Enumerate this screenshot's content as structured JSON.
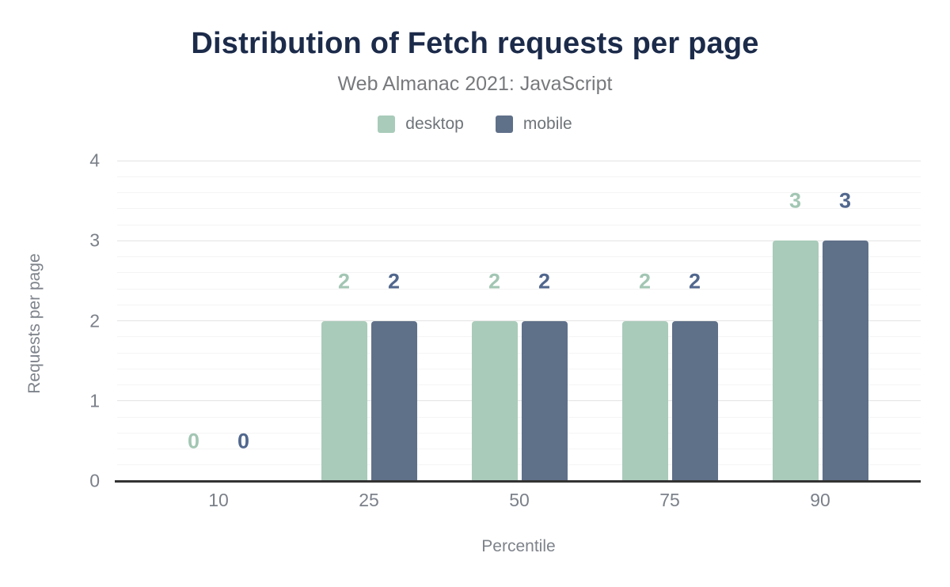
{
  "title": "Distribution of Fetch requests per page",
  "subtitle": "Web Almanac 2021: JavaScript",
  "colors": {
    "title": "#1c2b4a",
    "subtitle": "#77797c",
    "tick_text": "#7b8089",
    "axis_title_text": "#7e838b",
    "axis_line": "#333333",
    "gridline_major": "#e3e3e3",
    "gridline_minor": "#f4f4f4",
    "desktop": "#a9cbba",
    "mobile": "#5f7089",
    "desktop_label": "#a2c6b3",
    "mobile_label": "#51678d"
  },
  "chart_data": {
    "type": "bar",
    "categories": [
      "10",
      "25",
      "50",
      "75",
      "90"
    ],
    "series": [
      {
        "name": "desktop",
        "values": [
          0,
          2,
          2,
          2,
          3
        ],
        "labels": [
          "0",
          "2",
          "2",
          "2",
          "3"
        ],
        "color": "#a9cbba",
        "label_color": "#a2c6b3"
      },
      {
        "name": "mobile",
        "values": [
          0,
          2,
          2,
          2,
          3
        ],
        "labels": [
          "0",
          "2",
          "2",
          "2",
          "3"
        ],
        "color": "#5f7089",
        "label_color": "#51678d"
      }
    ],
    "xlabel": "Percentile",
    "ylabel": "Requests per page",
    "ylim": [
      0,
      4
    ],
    "yticks": [
      0,
      1,
      2,
      3,
      4
    ],
    "minor_grid_step": 0.2,
    "grid": true,
    "legend_position": "top"
  }
}
